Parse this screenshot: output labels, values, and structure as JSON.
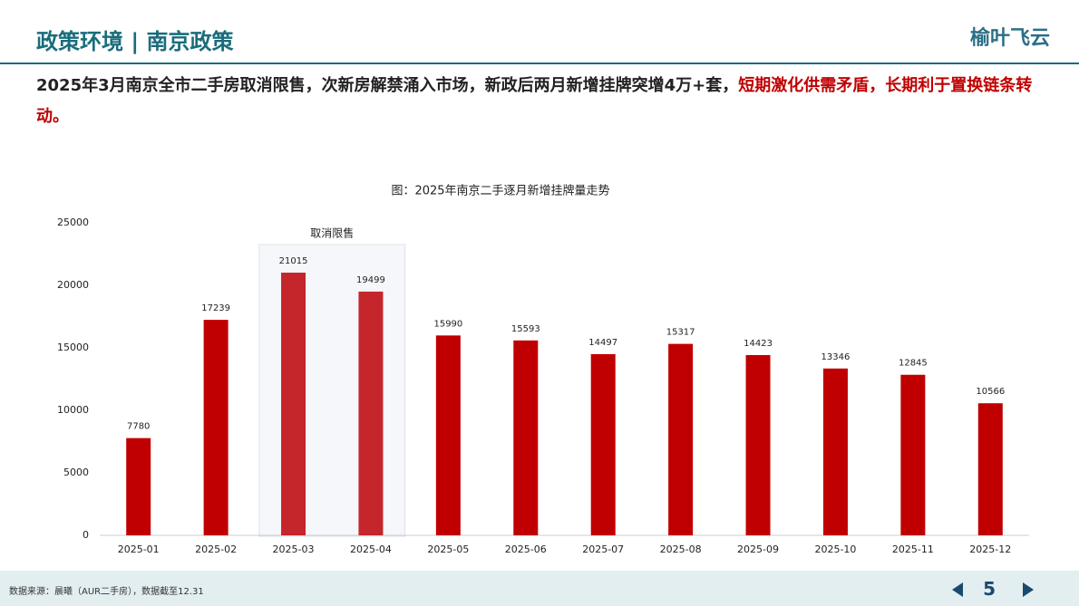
{
  "header": {
    "title": "政策环境 | 南京政策",
    "logo": "榆叶飞云"
  },
  "headline": {
    "text": "2025年3月南京全市二手房取消限售，次新房解禁涌入市场，新政后两月新增挂牌突增4万+套，",
    "emphasis": "短期激化供需矛盾，长期利于置换链条转动。"
  },
  "chart_data": {
    "type": "bar",
    "title": "图：2025年南京二手逐月新增挂牌量走势",
    "annotation": "取消限售",
    "categories": [
      "2025-01",
      "2025-02",
      "2025-03",
      "2025-04",
      "2025-05",
      "2025-06",
      "2025-07",
      "2025-08",
      "2025-09",
      "2025-10",
      "2025-11",
      "2025-12"
    ],
    "values": [
      7780,
      17239,
      21015,
      19499,
      15990,
      15593,
      14497,
      15317,
      14423,
      13346,
      12845,
      10566
    ],
    "color": "#c00000",
    "highlight_color": "#c4262c",
    "ylim": [
      0,
      25000
    ],
    "yticks": [
      0,
      5000,
      10000,
      15000,
      20000,
      25000
    ],
    "grid": false
  },
  "footer": {
    "source": "数据来源：晨曦（AUR二手房），数据截至12.31",
    "page": "5"
  }
}
